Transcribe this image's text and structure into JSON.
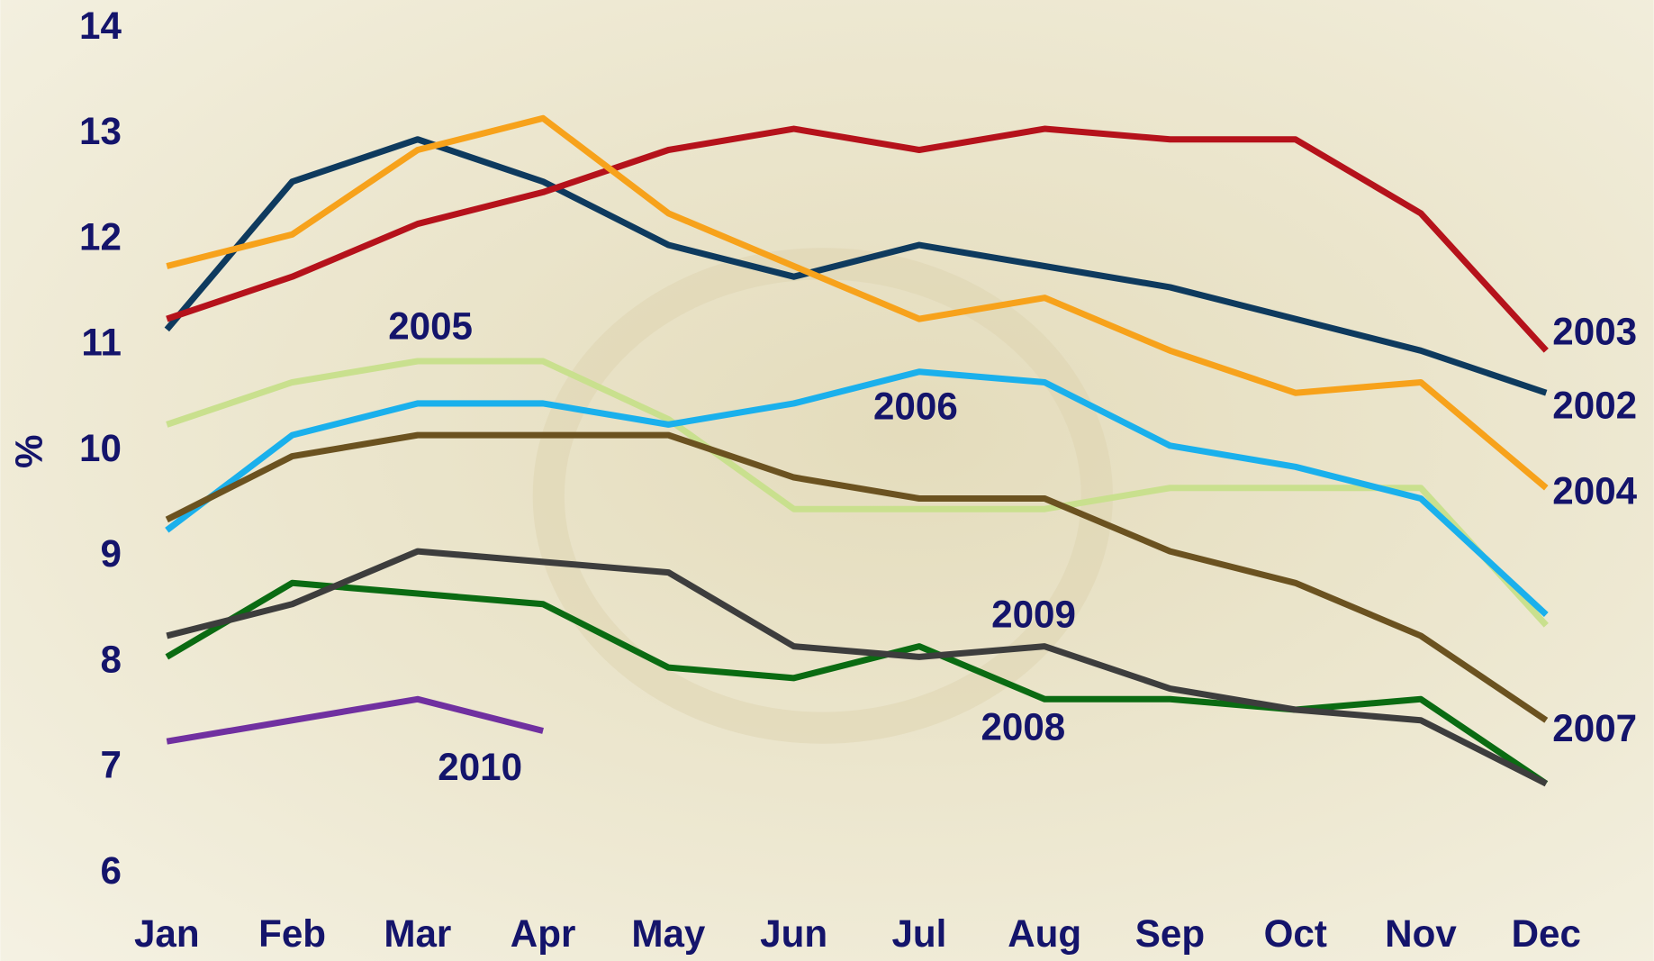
{
  "chart_data": {
    "type": "line",
    "y_label": "%",
    "categories": [
      "Jan",
      "Feb",
      "Mar",
      "Apr",
      "May",
      "Jun",
      "Jul",
      "Aug",
      "Sep",
      "Oct",
      "Nov",
      "Dec"
    ],
    "ylim": [
      6,
      14
    ],
    "yticks": [
      6,
      7,
      8,
      9,
      10,
      11,
      12,
      13,
      14
    ],
    "series": [
      {
        "name": "2002",
        "color": "#0e3a5e",
        "values": [
          11.15,
          12.55,
          12.95,
          12.55,
          11.95,
          11.65,
          11.95,
          11.75,
          11.55,
          11.25,
          10.95,
          10.55
        ]
      },
      {
        "name": "2003",
        "color": "#b5121b",
        "values": [
          11.25,
          11.65,
          12.15,
          12.45,
          12.85,
          13.05,
          12.85,
          13.05,
          12.95,
          12.95,
          12.25,
          10.95
        ]
      },
      {
        "name": "2004",
        "color": "#f7a21b",
        "values": [
          11.75,
          12.05,
          12.85,
          13.15,
          12.25,
          11.75,
          11.25,
          11.45,
          10.95,
          10.55,
          10.65,
          9.65
        ]
      },
      {
        "name": "2005",
        "color": "#c9e08e",
        "values": [
          10.25,
          10.65,
          10.85,
          10.85,
          10.3,
          9.45,
          9.45,
          9.45,
          9.65,
          9.65,
          9.65,
          8.35
        ]
      },
      {
        "name": "2006",
        "color": "#1ab0ec",
        "values": [
          9.25,
          10.15,
          10.45,
          10.45,
          10.25,
          10.45,
          10.75,
          10.65,
          10.05,
          9.85,
          9.55,
          8.45
        ]
      },
      {
        "name": "2007",
        "color": "#6b5220",
        "values": [
          9.35,
          9.95,
          10.15,
          10.15,
          10.15,
          9.75,
          9.55,
          9.55,
          9.05,
          8.75,
          8.25,
          7.45
        ]
      },
      {
        "name": "2008",
        "color": "#0a6b12",
        "values": [
          8.05,
          8.75,
          8.65,
          8.55,
          7.95,
          7.85,
          8.15,
          7.65,
          7.65,
          7.55,
          7.65,
          6.85
        ]
      },
      {
        "name": "2009",
        "color": "#3d3d3d",
        "values": [
          8.25,
          8.55,
          9.05,
          8.95,
          8.85,
          8.15,
          8.05,
          8.15,
          7.75,
          7.55,
          7.45,
          6.85
        ]
      },
      {
        "name": "2010",
        "color": "#7030a0",
        "values": [
          7.25,
          7.45,
          7.65,
          7.35,
          null,
          null,
          null,
          null,
          null,
          null,
          null,
          null
        ]
      }
    ]
  }
}
